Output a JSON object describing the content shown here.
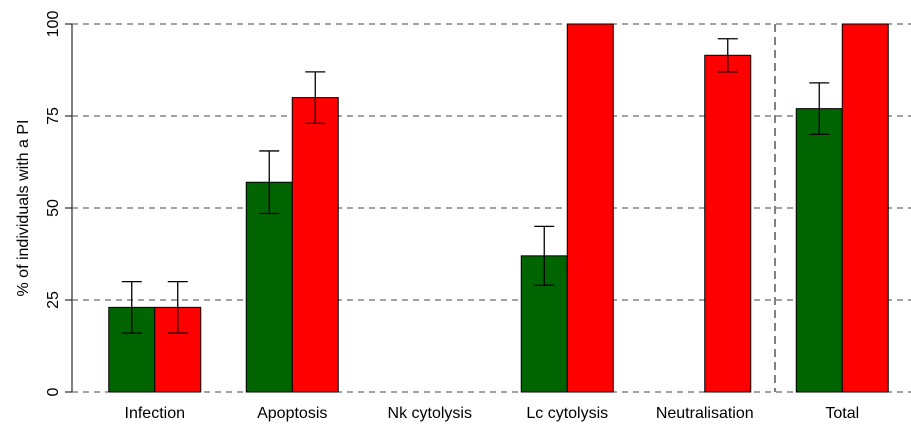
{
  "chart_data": {
    "type": "bar",
    "ylabel": "% of individuals with a PI",
    "categories": [
      "Infection",
      "Apoptosis",
      "Nk cytolysis",
      "Lc cytolysis",
      "Neutralisation",
      "Total"
    ],
    "series": [
      {
        "color": "#006400",
        "values": [
          23,
          57,
          0,
          37,
          0,
          77
        ],
        "errors": [
          7,
          8.5,
          null,
          8,
          null,
          7
        ]
      },
      {
        "color": "#ff0000",
        "values": [
          23,
          80,
          0,
          100,
          91.5,
          100
        ],
        "errors": [
          7,
          7,
          null,
          null,
          4.5,
          null
        ]
      }
    ],
    "ylim": [
      0,
      100
    ],
    "yticks": [
      0,
      25,
      50,
      75,
      100
    ],
    "grid": true
  }
}
